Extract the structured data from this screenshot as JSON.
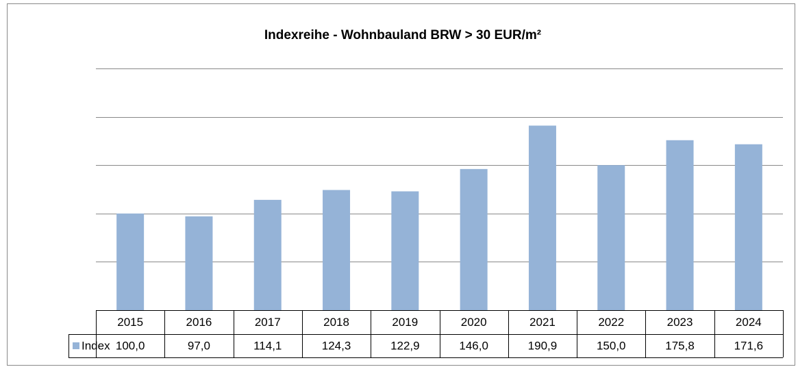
{
  "chart_data": {
    "type": "bar",
    "title": "Indexreihe - Wohnbauland BRW > 30 EUR/m²",
    "categories": [
      "2015",
      "2016",
      "2017",
      "2018",
      "2019",
      "2020",
      "2021",
      "2022",
      "2023",
      "2024"
    ],
    "series": [
      {
        "name": "Index",
        "color": "#95b3d7",
        "values": [
          100.0,
          97.0,
          114.1,
          124.3,
          122.9,
          146.0,
          190.9,
          150.0,
          175.8,
          171.6
        ],
        "value_labels": [
          "100,0",
          "97,0",
          "114,1",
          "124,3",
          "122,9",
          "146,0",
          "190,9",
          "150,0",
          "175,8",
          "171,6"
        ]
      }
    ],
    "ylim": [
      0,
      250
    ],
    "yticks": [
      0,
      50,
      100,
      150,
      200,
      250
    ],
    "grid": true
  }
}
